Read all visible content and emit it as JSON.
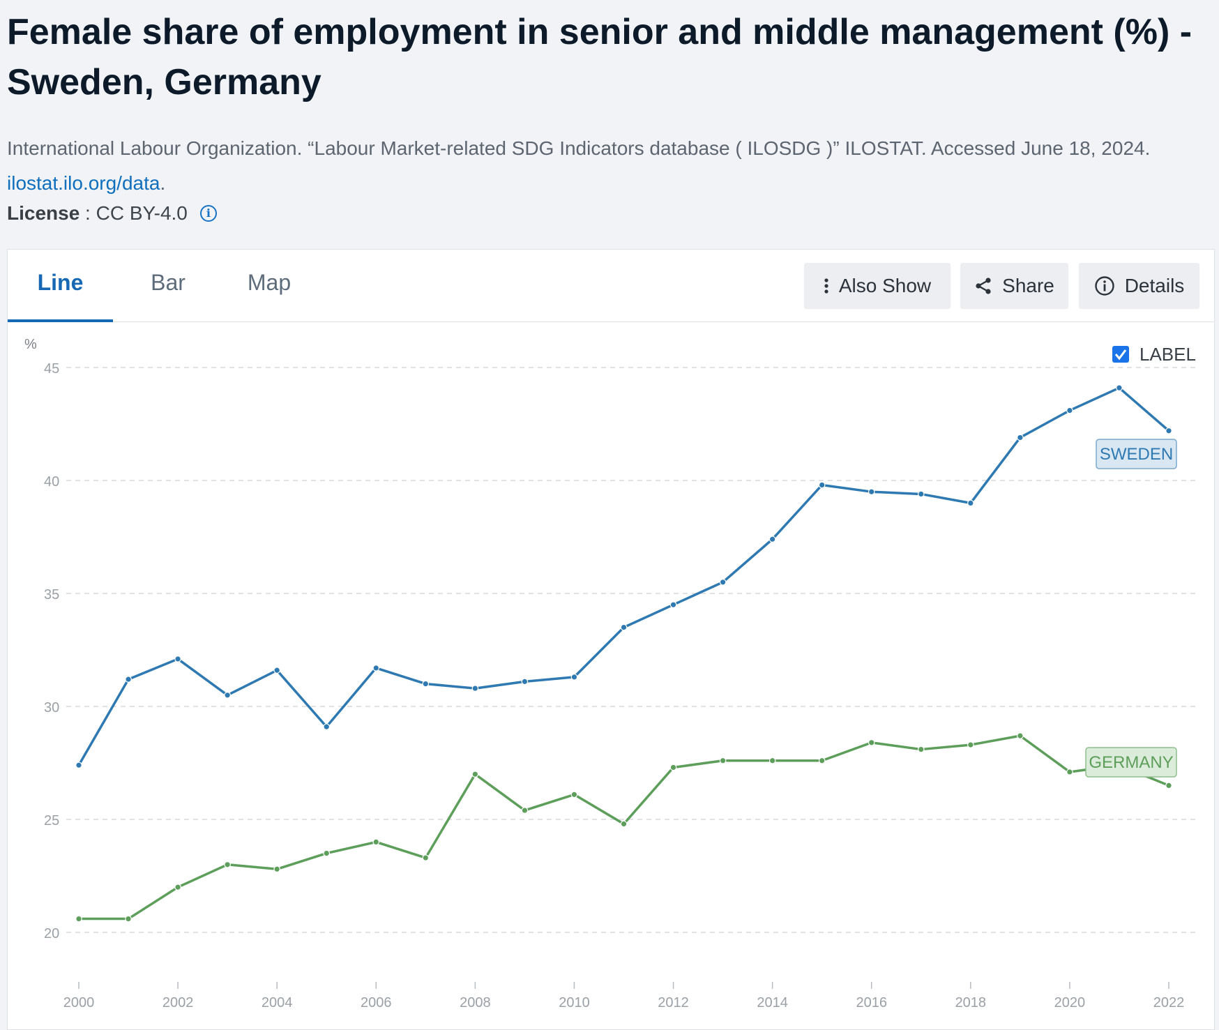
{
  "page": {
    "title": "Female share of employment in senior and middle management (%) - Sweden, Germany",
    "source_text": "International Labour Organization. “Labour Market-related SDG Indicators database ( ILOSDG )” ILOSTAT. Accessed June 18, 2024.",
    "source_link": "ilostat.ilo.org/data",
    "source_suffix": ".",
    "license_label": "License",
    "license_sep": " : ",
    "license_value": "CC BY-4.0"
  },
  "tabs": [
    {
      "label": "Line",
      "active": true
    },
    {
      "label": "Bar",
      "active": false
    },
    {
      "label": "Map",
      "active": false
    }
  ],
  "toolbar": {
    "also_show": "Also Show",
    "share": "Share",
    "details": "Details"
  },
  "label_toggle": {
    "label": "LABEL",
    "checked": true
  },
  "colors": {
    "sweden": "#2e79b2",
    "germany": "#5c9e5a",
    "grid": "#d6d9dc",
    "tick": "#9aa0a6"
  },
  "chart_data": {
    "type": "line",
    "ylabel": "%",
    "ylim": [
      18,
      46
    ],
    "yticks": [
      20,
      25,
      30,
      35,
      40,
      45
    ],
    "x": [
      2000,
      2001,
      2002,
      2003,
      2004,
      2005,
      2006,
      2007,
      2008,
      2009,
      2010,
      2011,
      2012,
      2013,
      2014,
      2015,
      2016,
      2017,
      2018,
      2019,
      2020,
      2021,
      2022
    ],
    "xticks": [
      2000,
      2002,
      2004,
      2006,
      2008,
      2010,
      2012,
      2014,
      2016,
      2018,
      2020,
      2022
    ],
    "grid": true,
    "series": [
      {
        "name": "SWEDEN",
        "color": "#2e79b2",
        "values": [
          27.4,
          31.2,
          32.1,
          30.5,
          31.6,
          29.1,
          31.7,
          31.0,
          30.8,
          31.1,
          31.3,
          33.5,
          34.5,
          35.5,
          37.4,
          39.8,
          39.5,
          39.4,
          39.0,
          41.9,
          43.1,
          44.1,
          42.2
        ]
      },
      {
        "name": "GERMANY",
        "color": "#5c9e5a",
        "values": [
          20.6,
          20.6,
          22.0,
          23.0,
          22.8,
          23.5,
          24.0,
          23.3,
          27.0,
          25.4,
          26.1,
          24.8,
          27.3,
          27.6,
          27.6,
          27.6,
          28.4,
          28.1,
          28.3,
          28.7,
          27.1,
          27.4,
          26.5
        ]
      }
    ]
  }
}
